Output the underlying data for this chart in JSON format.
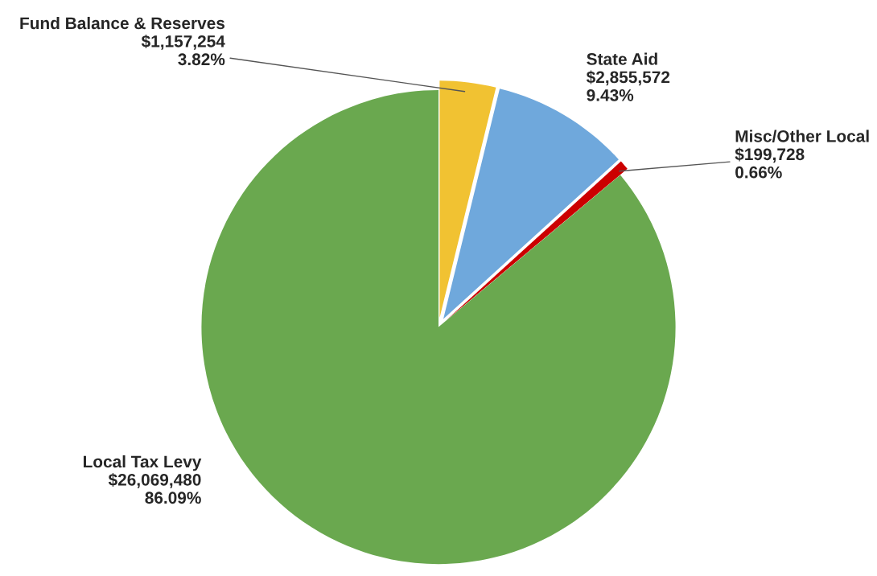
{
  "chart_data": {
    "type": "pie",
    "categories": [
      "Fund Balance & Reserves",
      "State Aid",
      "Misc/Other Local",
      "Local Tax Levy"
    ],
    "values": [
      1157254,
      2855572,
      199728,
      26069480
    ],
    "value_labels": [
      "$1,157,254\n3.82%",
      "$2,855,572\n9.43%",
      "$199,728\n0.66%",
      "$26,069,480\n86.09%"
    ],
    "colors": [
      "#f1c232",
      "#6fa8dc",
      "#cc0000",
      "#6aa84f"
    ],
    "legend": false
  }
}
